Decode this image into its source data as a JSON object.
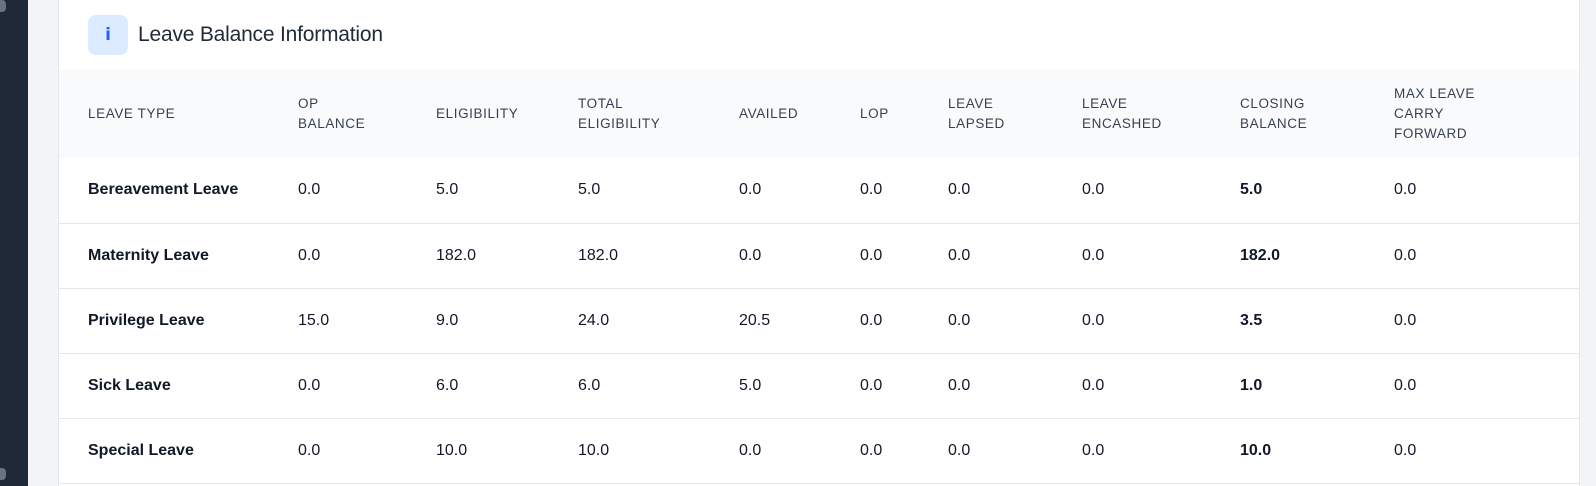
{
  "card": {
    "title": "Leave Balance Information",
    "info_glyph": "i",
    "info_icon": "info-icon"
  },
  "colors": {
    "badge_bg": "#dbeafe",
    "badge_fg": "#2563eb",
    "rail": "#1f2937"
  },
  "table": {
    "headers": [
      [
        "LEAVE TYPE"
      ],
      [
        "OP",
        "BALANCE"
      ],
      [
        "ELIGIBILITY"
      ],
      [
        "TOTAL",
        "ELIGIBILITY"
      ],
      [
        "AVAILED"
      ],
      [
        "LOP"
      ],
      [
        "LEAVE",
        "LAPSED"
      ],
      [
        "LEAVE",
        "ENCASHED"
      ],
      [
        "CLOSING",
        "BALANCE"
      ],
      [
        "MAX LEAVE",
        "CARRY",
        "FORWARD"
      ]
    ],
    "rows": [
      [
        "Bereavement Leave",
        "0.0",
        "5.0",
        "5.0",
        "0.0",
        "0.0",
        "0.0",
        "0.0",
        "5.0",
        "0.0"
      ],
      [
        "Maternity Leave",
        "0.0",
        "182.0",
        "182.0",
        "0.0",
        "0.0",
        "0.0",
        "0.0",
        "182.0",
        "0.0"
      ],
      [
        "Privilege Leave",
        "15.0",
        "9.0",
        "24.0",
        "20.5",
        "0.0",
        "0.0",
        "0.0",
        "3.5",
        "0.0"
      ],
      [
        "Sick Leave",
        "0.0",
        "6.0",
        "6.0",
        "5.0",
        "0.0",
        "0.0",
        "0.0",
        "1.0",
        "0.0"
      ],
      [
        "Special Leave",
        "0.0",
        "10.0",
        "10.0",
        "0.0",
        "0.0",
        "0.0",
        "0.0",
        "10.0",
        "0.0"
      ]
    ]
  }
}
